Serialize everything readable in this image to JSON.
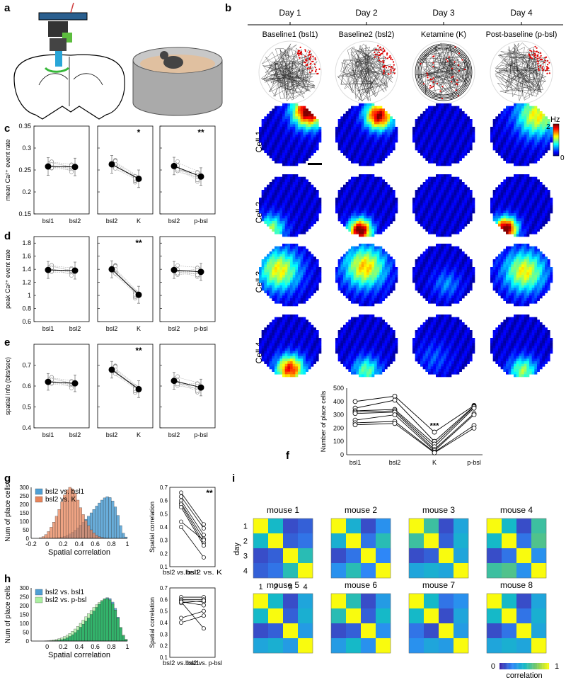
{
  "panel_labels": {
    "a": "a",
    "b": "b",
    "c": "c",
    "d": "d",
    "e": "e",
    "f": "f",
    "g": "g",
    "h": "h",
    "i": "i"
  },
  "colors": {
    "bsl1_hist": "#4f9fd4",
    "k_hist": "#e8845a",
    "pbsl_hist": "#aaf0a0",
    "overlap_green": "#33b36b",
    "jet_high": "#8b0000",
    "jet_low": "#00008f",
    "parula_low": "#3e26a8",
    "parula_high": "#f9fb0e",
    "trajectory_spikes": "#e00000"
  },
  "panel_b": {
    "days": [
      "Day 1",
      "Day 2",
      "Day 3",
      "Day 4"
    ],
    "conditions": [
      "Baseline1 (bsl1)",
      "Baseline2 (bsl2)",
      "Ketamine (K)",
      "Post-baseline (p-bsl)"
    ],
    "cells": [
      "Cell 1",
      "Cell 2",
      "Cell 3",
      "Cell 4"
    ],
    "colorbar_unit": "Hz",
    "colorbar_max": "2",
    "colorbar_min": "0"
  },
  "chart_data": [
    {
      "id": "c",
      "type": "line",
      "ylabel": "mean Ca²⁺ event rate",
      "ylim": [
        0.15,
        0.35
      ],
      "yticks": [
        "0.35",
        "0.3",
        "0.25",
        "0.2",
        "0.15"
      ],
      "subplots": [
        {
          "categories": [
            "bsl1",
            "bsl2"
          ],
          "means": [
            0.258,
            0.257
          ],
          "sig": ""
        },
        {
          "categories": [
            "bsl2",
            "K"
          ],
          "means": [
            0.263,
            0.23
          ],
          "sig": "*"
        },
        {
          "categories": [
            "bsl2",
            "p-bsl"
          ],
          "means": [
            0.259,
            0.235
          ],
          "sig": "**"
        }
      ]
    },
    {
      "id": "d",
      "type": "line",
      "ylabel": "peak Ca²⁺ event rate",
      "ylim": [
        0.6,
        1.9
      ],
      "yticks": [
        "1.8",
        "1.6",
        "1.4",
        "1.2",
        "1",
        "0.8",
        "0.6"
      ],
      "subplots": [
        {
          "categories": [
            "bsl1",
            "bsl2"
          ],
          "means": [
            1.39,
            1.38
          ],
          "sig": ""
        },
        {
          "categories": [
            "bsl2",
            "K"
          ],
          "means": [
            1.4,
            1.01
          ],
          "sig": "**"
        },
        {
          "categories": [
            "bsl2",
            "p-bsl"
          ],
          "means": [
            1.39,
            1.36
          ],
          "sig": ""
        }
      ]
    },
    {
      "id": "e",
      "type": "line",
      "ylabel": "spatial info (bits/sec)",
      "ylim": [
        0.4,
        0.8
      ],
      "yticks": [
        "0.7",
        "0.6",
        "0.5",
        "0.4"
      ],
      "subplots": [
        {
          "categories": [
            "bsl1",
            "bsl2"
          ],
          "means": [
            0.62,
            0.613
          ],
          "sig": ""
        },
        {
          "categories": [
            "bsl2",
            "K"
          ],
          "means": [
            0.678,
            0.585
          ],
          "sig": "**"
        },
        {
          "categories": [
            "bsl2",
            "p-bsl"
          ],
          "means": [
            0.625,
            0.593
          ],
          "sig": ""
        }
      ]
    },
    {
      "id": "f",
      "type": "line",
      "ylabel": "Number of place cells",
      "categories": [
        "bsl1",
        "bsl2",
        "K",
        "p-bsl"
      ],
      "ylim": [
        0,
        500
      ],
      "yticks": [
        "500",
        "400",
        "300",
        "200",
        "100",
        "0"
      ],
      "sig": "***",
      "series": [
        {
          "values": [
            400,
            440,
            170,
            370
          ]
        },
        {
          "values": [
            350,
            410,
            100,
            365
          ]
        },
        {
          "values": [
            330,
            340,
            80,
            360
          ]
        },
        {
          "values": [
            320,
            330,
            60,
            350
          ]
        },
        {
          "values": [
            310,
            320,
            40,
            310
          ]
        },
        {
          "values": [
            260,
            300,
            30,
            300
          ]
        },
        {
          "values": [
            240,
            250,
            20,
            220
          ]
        },
        {
          "values": [
            225,
            235,
            15,
            200
          ]
        }
      ]
    },
    {
      "id": "g_hist",
      "type": "bar",
      "xlabel": "Spatial correlation",
      "ylabel": "Num of place cells",
      "xlim": [
        -0.2,
        1
      ],
      "ylim": [
        0,
        300
      ],
      "xticks": [
        "-0.2",
        "0",
        "0.2",
        "0.4",
        "0.6",
        "0.8",
        "1"
      ],
      "yticks": [
        "300",
        "250",
        "200",
        "150",
        "100",
        "50",
        "0"
      ],
      "series": [
        {
          "name": "bsl2 vs. bsl1",
          "values": [
            0,
            0,
            0,
            0,
            0,
            0,
            0,
            1,
            2,
            3,
            5,
            8,
            12,
            18,
            26,
            36,
            48,
            62,
            78,
            95,
            112,
            130,
            150,
            170,
            190,
            208,
            225,
            238,
            245,
            240,
            220,
            185,
            135,
            75,
            30,
            8
          ]
        },
        {
          "name": "bsl2 vs. K",
          "values": [
            0,
            0,
            0,
            4,
            10,
            22,
            40,
            65,
            95,
            130,
            170,
            215,
            255,
            285,
            300,
            290,
            265,
            225,
            180,
            140,
            105,
            75,
            50,
            32,
            18,
            10,
            5,
            2,
            1,
            0,
            0,
            0,
            0,
            0,
            0,
            0
          ]
        }
      ]
    },
    {
      "id": "g_pair",
      "type": "line",
      "ylabel": "Spatial correlation",
      "ylim": [
        0.1,
        0.7
      ],
      "yticks": [
        "0.7",
        "0.6",
        "0.5",
        "0.4",
        "0.3",
        "0.2",
        "0.1"
      ],
      "categories": [
        "bsl2 vs. bsl1",
        "bsl2 vs. K"
      ],
      "sig": "**",
      "series": [
        {
          "values": [
            0.66,
            0.42
          ]
        },
        {
          "values": [
            0.63,
            0.39
          ]
        },
        {
          "values": [
            0.6,
            0.34
          ]
        },
        {
          "values": [
            0.58,
            0.31
          ]
        },
        {
          "values": [
            0.57,
            0.28
          ]
        },
        {
          "values": [
            0.55,
            0.26
          ]
        },
        {
          "values": [
            0.44,
            0.3
          ]
        },
        {
          "values": [
            0.4,
            0.17
          ]
        }
      ]
    },
    {
      "id": "h_hist",
      "type": "bar",
      "xlabel": "Spatial correlation",
      "ylabel": "Num of place cells",
      "xlim": [
        -0.2,
        1
      ],
      "ylim": [
        0,
        300
      ],
      "xticks": [
        "0",
        "0.2",
        "0.4",
        "0.6",
        "0.8",
        "1"
      ],
      "yticks": [
        "300",
        "250",
        "200",
        "150",
        "100",
        "50",
        "0"
      ],
      "series": [
        {
          "name": "bsl2 vs. bsl1",
          "values": [
            0,
            0,
            0,
            0,
            0,
            0,
            0,
            1,
            2,
            3,
            5,
            8,
            12,
            18,
            26,
            36,
            48,
            62,
            78,
            95,
            112,
            130,
            150,
            170,
            190,
            208,
            225,
            238,
            245,
            240,
            220,
            185,
            135,
            75,
            30,
            8
          ]
        },
        {
          "name": "bsl2 vs. p-bsl",
          "values": [
            0,
            0,
            0,
            0,
            0,
            1,
            2,
            4,
            6,
            9,
            13,
            18,
            25,
            33,
            43,
            55,
            68,
            83,
            100,
            118,
            137,
            155,
            173,
            190,
            205,
            218,
            230,
            238,
            240,
            232,
            210,
            175,
            130,
            78,
            35,
            10
          ]
        }
      ]
    },
    {
      "id": "h_pair",
      "type": "line",
      "ylabel": "Spatial correlation",
      "ylim": [
        0.1,
        0.7
      ],
      "yticks": [
        "0.7",
        "0.6",
        "0.5",
        "0.4",
        "0.3",
        "0.2",
        "0.1"
      ],
      "categories": [
        "bsl2 vs. bsl1",
        "bsl2 vs. p-bsl"
      ],
      "series": [
        {
          "values": [
            0.62,
            0.62
          ]
        },
        {
          "values": [
            0.6,
            0.6
          ]
        },
        {
          "values": [
            0.59,
            0.58
          ]
        },
        {
          "values": [
            0.58,
            0.55
          ]
        },
        {
          "values": [
            0.57,
            0.59
          ]
        },
        {
          "values": [
            0.44,
            0.5
          ]
        },
        {
          "values": [
            0.4,
            0.46
          ]
        },
        {
          "values": [
            0.58,
            0.35
          ]
        }
      ]
    },
    {
      "id": "i",
      "type": "heatmap",
      "ylabel": "day",
      "ticks": [
        "1",
        "2",
        "3",
        "4"
      ],
      "colorbar_label": "correlation",
      "colorbar_min": "0",
      "colorbar_max": "1",
      "mice": [
        {
          "name": "mouse 1",
          "matrix": [
            [
              1,
              0.5,
              0.1,
              0.15
            ],
            [
              0.5,
              1,
              0.15,
              0.2
            ],
            [
              0.1,
              0.15,
              1,
              0.55
            ],
            [
              0.15,
              0.2,
              0.55,
              1
            ]
          ]
        },
        {
          "name": "mouse 2",
          "matrix": [
            [
              1,
              0.45,
              0.1,
              0.3
            ],
            [
              0.45,
              1,
              0.2,
              0.55
            ],
            [
              0.1,
              0.2,
              1,
              0.25
            ],
            [
              0.3,
              0.55,
              0.25,
              1
            ]
          ]
        },
        {
          "name": "mouse 3",
          "matrix": [
            [
              1,
              0.6,
              0.1,
              0.4
            ],
            [
              0.6,
              1,
              0.15,
              0.45
            ],
            [
              0.1,
              0.15,
              1,
              0.4
            ],
            [
              0.4,
              0.45,
              0.4,
              1
            ]
          ]
        },
        {
          "name": "mouse 4",
          "matrix": [
            [
              1,
              0.5,
              0.1,
              0.6
            ],
            [
              0.5,
              1,
              0.2,
              0.65
            ],
            [
              0.1,
              0.2,
              1,
              0.3
            ],
            [
              0.6,
              0.65,
              0.3,
              1
            ]
          ]
        },
        {
          "name": "mouse 5",
          "matrix": [
            [
              1,
              0.5,
              0.1,
              0.4
            ],
            [
              0.5,
              1,
              0.15,
              0.45
            ],
            [
              0.1,
              0.15,
              1,
              0.35
            ],
            [
              0.4,
              0.45,
              0.35,
              1
            ]
          ]
        },
        {
          "name": "mouse 6",
          "matrix": [
            [
              1,
              0.55,
              0.1,
              0.35
            ],
            [
              0.55,
              1,
              0.15,
              0.5
            ],
            [
              0.1,
              0.15,
              1,
              0.3
            ],
            [
              0.35,
              0.5,
              0.3,
              1
            ]
          ]
        },
        {
          "name": "mouse 7",
          "matrix": [
            [
              1,
              0.5,
              0.2,
              0.3
            ],
            [
              0.5,
              1,
              0.1,
              0.4
            ],
            [
              0.2,
              0.1,
              1,
              0.35
            ],
            [
              0.3,
              0.4,
              0.35,
              1
            ]
          ]
        },
        {
          "name": "mouse 8",
          "matrix": [
            [
              1,
              0.5,
              0.1,
              0.4
            ],
            [
              0.5,
              1,
              0.2,
              0.45
            ],
            [
              0.1,
              0.2,
              1,
              0.4
            ],
            [
              0.4,
              0.45,
              0.4,
              1
            ]
          ]
        }
      ]
    }
  ]
}
